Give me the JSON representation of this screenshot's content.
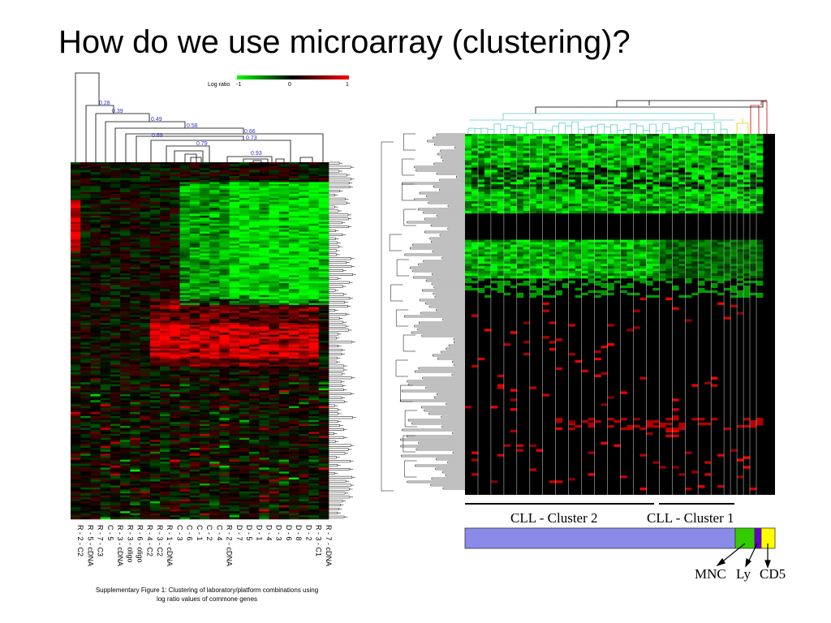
{
  "slide": {
    "title": "How do we use microarray (clustering)?"
  },
  "left_figure": {
    "legend": {
      "label": "Log ratio",
      "ticks": [
        "-1",
        "0",
        "1"
      ],
      "colors": [
        "#00ff00",
        "#000000",
        "#ff0000"
      ]
    },
    "dendrogram_values": [
      "0.28",
      "0.39",
      "0.49",
      "0.58",
      "0.66",
      "0.69",
      "0.73",
      "0.79",
      "0.93"
    ],
    "column_labels": [
      "R - 2 - C2",
      "R - 5 - cDNA",
      "R - 7 - C3",
      "C - 5",
      "R - 3 - cDNA",
      "R - 3 - oligo",
      "R - 6 - oligo",
      "R - 4 - C2",
      "R - 3 - C2",
      "R - 1 - cDNA",
      "C - 3",
      "C - 6",
      "C - 1",
      "C - 2",
      "C - 4",
      "R - 2 - cDNA",
      "D - 7",
      "D - 5",
      "D - 1",
      "D - 4",
      "D - 3",
      "D - 6",
      "D - 8",
      "D - 2",
      "R - 3 - C1",
      "R - 7 - cDNA"
    ],
    "caption_line1": "Supplementary Figure 1: Clustering of laboratory/platform combinations using",
    "caption_line2": "log ratio values of commone genes"
  },
  "right_figure": {
    "cluster_labels": [
      "CLL - Cluster 2",
      "CLL - Cluster 1"
    ],
    "sample_types": [
      "MNC",
      "Ly",
      "CD5"
    ],
    "bar_colors": {
      "cll": "#8a8ae8",
      "mnc": "#33cc00",
      "ly": "#6600cc",
      "cd5": "#ffff00"
    }
  },
  "colors": {
    "heat_green": "#00ff00",
    "heat_red": "#ff0000",
    "dendro_label": "#3333cc",
    "cyan_tree": "#66cccc",
    "yellow_tree": "#ddcc00",
    "red_tree": "#cc0000"
  }
}
